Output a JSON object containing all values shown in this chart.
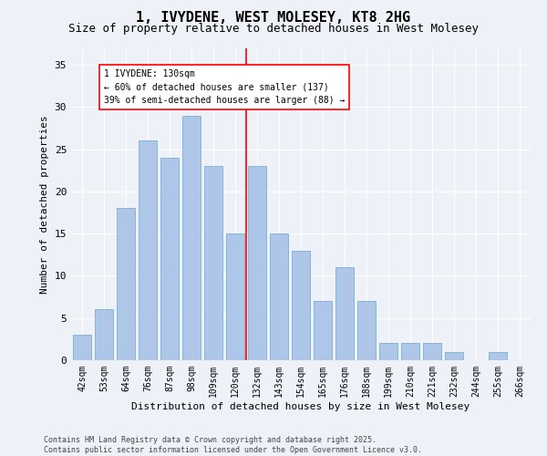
{
  "title": "1, IVYDENE, WEST MOLESEY, KT8 2HG",
  "subtitle": "Size of property relative to detached houses in West Molesey",
  "xlabel": "Distribution of detached houses by size in West Molesey",
  "ylabel": "Number of detached properties",
  "categories": [
    "42sqm",
    "53sqm",
    "64sqm",
    "76sqm",
    "87sqm",
    "98sqm",
    "109sqm",
    "120sqm",
    "132sqm",
    "143sqm",
    "154sqm",
    "165sqm",
    "176sqm",
    "188sqm",
    "199sqm",
    "210sqm",
    "221sqm",
    "232sqm",
    "244sqm",
    "255sqm",
    "266sqm"
  ],
  "values": [
    3,
    6,
    18,
    26,
    24,
    29,
    23,
    15,
    23,
    15,
    13,
    7,
    11,
    7,
    2,
    2,
    2,
    1,
    0,
    1,
    0
  ],
  "bar_color": "#aec6e8",
  "bar_edge_color": "#7aafd4",
  "vline_index": 8,
  "vline_color": "red",
  "annotation_text": "1 IVYDENE: 130sqm\n← 60% of detached houses are smaller (137)\n39% of semi-detached houses are larger (88) →",
  "ylim": [
    0,
    37
  ],
  "yticks": [
    0,
    5,
    10,
    15,
    20,
    25,
    30,
    35
  ],
  "footer_text": "Contains HM Land Registry data © Crown copyright and database right 2025.\nContains public sector information licensed under the Open Government Licence v3.0.",
  "bg_color": "#eef2f8",
  "grid_color": "#ffffff",
  "title_fontsize": 11,
  "subtitle_fontsize": 9,
  "axis_label_fontsize": 8,
  "tick_fontsize": 7,
  "annotation_fontsize": 7,
  "footer_fontsize": 6
}
